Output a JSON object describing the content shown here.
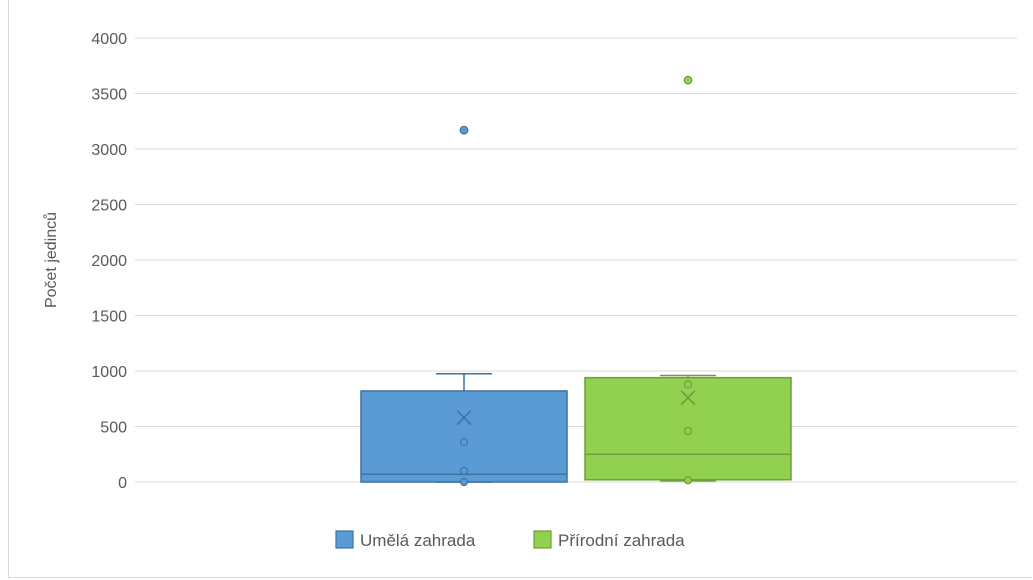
{
  "chart_data": {
    "type": "boxplot",
    "title": "",
    "xlabel": "",
    "ylabel": "Počet jedinců",
    "ylim": [
      0,
      4000
    ],
    "yticks": [
      0,
      500,
      1000,
      1500,
      2000,
      2500,
      3000,
      3500,
      4000
    ],
    "grid": true,
    "legend_position": "bottom",
    "series": [
      {
        "name": "Umělá zahrada",
        "color": "#5b9bd5",
        "edge_color": "#41719c",
        "box": {
          "min": 0,
          "q1": 0,
          "median": 70,
          "q3": 820,
          "whisker_high": 975,
          "mean": 580
        },
        "inner_points": [
          0,
          100,
          360
        ],
        "outliers": [
          3170
        ]
      },
      {
        "name": "Přírodní zahrada",
        "color": "#92d050",
        "edge_color": "#6e9e3a",
        "box": {
          "min": 10,
          "q1": 20,
          "median": 250,
          "q3": 940,
          "whisker_high": 960,
          "mean": 760
        },
        "inner_points": [
          15,
          460,
          880
        ],
        "outliers": [
          3620
        ]
      }
    ]
  }
}
